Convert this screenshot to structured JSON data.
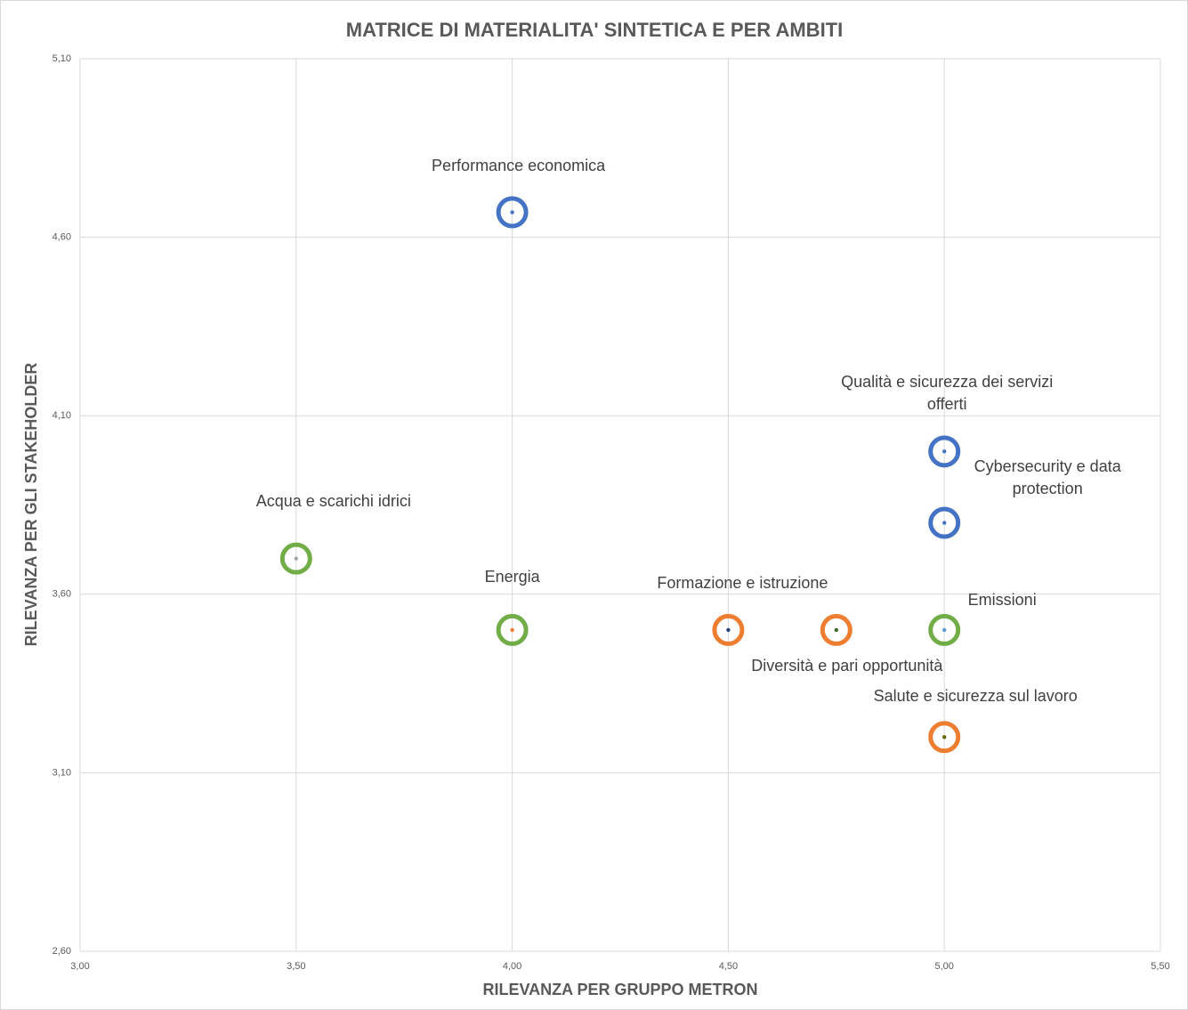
{
  "chart_data": {
    "type": "scatter",
    "title": "MATRICE DI MATERIALITA' SINTETICA E PER AMBITI",
    "x_label": "RILEVANZA PER GRUPPO METRON",
    "y_label": "RILEVANZA PER GLI STAKEHOLDER",
    "xlim": [
      3.0,
      5.5
    ],
    "ylim": [
      2.6,
      5.1
    ],
    "xticks": [
      {
        "value": 3.0,
        "label": "3,00"
      },
      {
        "value": 3.5,
        "label": "3,50"
      },
      {
        "value": 4.0,
        "label": "4,00"
      },
      {
        "value": 4.5,
        "label": "4,50"
      },
      {
        "value": 5.0,
        "label": "5,00"
      },
      {
        "value": 5.5,
        "label": "5,50"
      }
    ],
    "yticks": [
      {
        "value": 2.6,
        "label": "2,60"
      },
      {
        "value": 3.1,
        "label": "3,10"
      },
      {
        "value": 3.6,
        "label": "3,60"
      },
      {
        "value": 4.1,
        "label": "4,10"
      },
      {
        "value": 4.6,
        "label": "4,60"
      },
      {
        "value": 5.1,
        "label": "5,10"
      }
    ],
    "grid": true,
    "labels": [
      "Performance economica",
      "Qualità e sicurezza dei servizi offerti",
      "Cybersecurity e data protection",
      "Acqua e scarichi idrici",
      "Energia",
      "Formazione e istruzione",
      "Diversità e pari opportunità",
      "Emissioni",
      "Salute e sicurezza sul lavoro"
    ],
    "x": [
      4.0,
      5.0,
      5.0,
      3.5,
      4.0,
      4.5,
      4.75,
      5.0,
      5.0
    ],
    "y": [
      4.67,
      4.0,
      3.8,
      3.7,
      3.5,
      3.5,
      3.5,
      3.5,
      3.2
    ],
    "colors": [
      "#4472c4",
      "#4472c4",
      "#4472c4",
      "#70ad47",
      "#70ad47",
      "#ed7d31",
      "#ed7d31",
      "#70ad47",
      "#ed7d31"
    ],
    "dot_colors": [
      "#4472c4",
      "#4472c4",
      "#4472c4",
      "#a5a5a5",
      "#ed7d31",
      "#264478",
      "#43682b",
      "#5b9bd5",
      "#636300"
    ]
  }
}
